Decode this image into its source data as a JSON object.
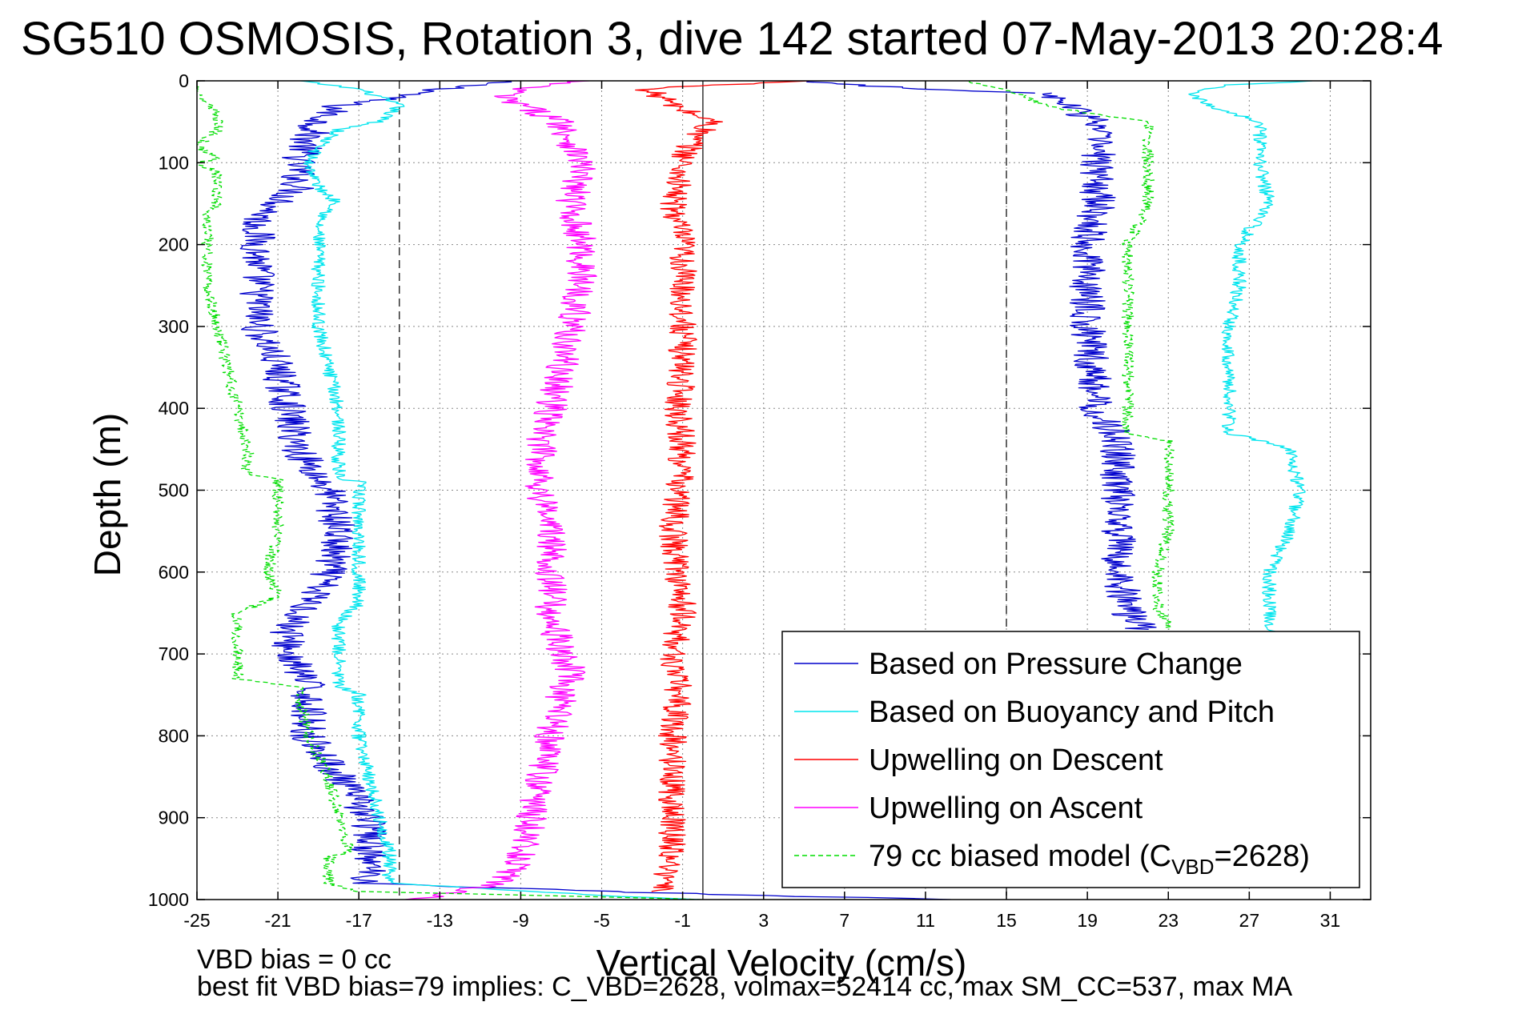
{
  "chart_data": {
    "type": "line",
    "title": "SG510 OSMOSIS, Rotation 3, dive 142 started 07-May-2013 20:28:4",
    "xlabel": "Vertical Velocity (cm/s)",
    "ylabel": "Depth (m)",
    "xlim": [
      -25,
      33
    ],
    "ylim": [
      0,
      1000
    ],
    "y_reversed": true,
    "grid": true,
    "x_ticks": [
      -25,
      -21,
      -17,
      -13,
      -9,
      -5,
      -1,
      3,
      7,
      11,
      15,
      19,
      23,
      27,
      31
    ],
    "y_ticks": [
      0,
      100,
      200,
      300,
      400,
      500,
      600,
      700,
      800,
      900,
      1000
    ],
    "vertical_reference_lines": [
      {
        "x": -15,
        "style": "dashed"
      },
      {
        "x": 0,
        "style": "solid"
      },
      {
        "x": 15,
        "style": "dashed"
      }
    ],
    "legend_position": "lower-right",
    "noise_amplitude": {
      "Based on Pressure Change": 0.9,
      "Based on Buoyancy and Pitch": 0.35,
      "Upwelling on Descent": 0.7,
      "Upwelling on Ascent": 0.8,
      "79 cc biased model": 0.3
    },
    "series": [
      {
        "name": "Based on Pressure Change",
        "color": "#0000cc",
        "dash": "solid",
        "segments": [
          {
            "depth": [
              0,
              15,
              30,
              50,
              70,
              100,
              130,
              150,
              170,
              200,
              250,
              300,
              350,
              400,
              450,
              485,
              500,
              550,
              600,
              640,
              670,
              700,
              740,
              760,
              800,
              850,
              900,
              950,
              980,
              990,
              995,
              1000
            ],
            "value": [
              -10,
              -14,
              -18,
              -19,
              -19.5,
              -20,
              -20,
              -21,
              -22,
              -22,
              -22,
              -22,
              -21,
              -20.5,
              -20,
              -19,
              -18.5,
              -18,
              -18.5,
              -19.5,
              -20.5,
              -20.5,
              -19.5,
              -19.5,
              -19.5,
              -18,
              -16.5,
              -16.5,
              -16.5,
              -5,
              3,
              12
            ]
          },
          {
            "depth": [
              0,
              5,
              10,
              15
            ],
            "value": [
              5,
              8,
              10,
              17
            ]
          },
          {
            "depth": [
              15,
              30,
              50,
              100,
              150,
              200,
              250,
              300,
              350,
              400,
              440,
              500,
              550,
              600,
              650,
              665,
              670
            ],
            "value": [
              17,
              18,
              19.5,
              19.5,
              19.5,
              19,
              19,
              19,
              19.2,
              19.5,
              20.5,
              20.5,
              20.5,
              20.5,
              21,
              21.5,
              21.5
            ]
          }
        ]
      },
      {
        "name": "Based on Buoyancy and Pitch",
        "color": "#00e5ee",
        "dash": "solid",
        "segments": [
          {
            "depth": [
              0,
              10,
              30,
              50,
              60,
              80,
              100,
              130,
              150,
              170,
              200,
              250,
              300,
              350,
              400,
              450,
              485,
              490,
              500,
              550,
              600,
              640,
              660,
              700,
              740,
              750,
              800,
              850,
              900,
              940,
              980,
              995,
              1000
            ],
            "value": [
              -20,
              -17,
              -15,
              -16,
              -18,
              -19,
              -19.5,
              -19,
              -18,
              -19,
              -19,
              -19,
              -19,
              -18.5,
              -18,
              -18,
              -18,
              -17,
              -17,
              -17,
              -17,
              -17,
              -18,
              -18,
              -18,
              -17,
              -17,
              -16.5,
              -16,
              -15.5,
              -15.5,
              -5,
              0
            ]
          },
          {
            "depth": [
              0,
              5,
              15,
              30,
              50,
              100,
              150,
              200,
              250,
              300,
              350,
              400,
              430,
              450,
              500,
              550,
              600,
              650,
              670,
              680
            ],
            "value": [
              30,
              26,
              24,
              25,
              27.5,
              27.5,
              28,
              26.5,
              26.5,
              26,
              26,
              26,
              26,
              29,
              29.5,
              29,
              28,
              28,
              28,
              29
            ]
          }
        ]
      },
      {
        "name": "Upwelling on Descent",
        "color": "#ff0000",
        "dash": "solid",
        "segments": [
          {
            "depth": [
              0,
              10,
              20,
              30,
              50,
              70,
              100,
              150,
              200,
              250,
              300,
              350,
              400,
              450,
              500,
              550,
              600,
              650,
              700,
              750,
              800,
              850,
              900,
              950,
              980,
              990
            ],
            "value": [
              5,
              -3,
              -2,
              -1.5,
              0.5,
              -0.5,
              -1,
              -1.5,
              -1,
              -1,
              -1,
              -1,
              -1.2,
              -1,
              -1.2,
              -1.5,
              -1.2,
              -1,
              -1.5,
              -1.2,
              -1.5,
              -1.5,
              -1.5,
              -1.5,
              -2,
              -2
            ]
          }
        ]
      },
      {
        "name": "Upwelling on Ascent",
        "color": "#ff00ff",
        "dash": "solid",
        "segments": [
          {
            "depth": [
              0,
              5,
              10,
              20,
              30,
              50,
              100,
              150,
              200,
              250,
              300,
              350,
              400,
              430,
              450,
              500,
              550,
              600,
              650,
              700,
              720,
              750,
              800,
              850,
              900,
              950,
              980,
              995,
              1000
            ],
            "value": [
              -6,
              -8,
              -9,
              -10,
              -9,
              -7,
              -6,
              -6.5,
              -6,
              -6,
              -6.5,
              -7,
              -7.5,
              -8,
              -8,
              -8,
              -7.5,
              -7.5,
              -7.5,
              -7,
              -6.5,
              -7,
              -7.5,
              -8,
              -8.5,
              -9,
              -10,
              -13,
              -15
            ]
          }
        ]
      },
      {
        "name": "79 cc biased model (C_VBD=2628)",
        "color": "#00dd00",
        "dash": "dashed",
        "segments": [
          {
            "depth": [
              0,
              20,
              40,
              60,
              80,
              95,
              100,
              110,
              120,
              140,
              150,
              160,
              200,
              250,
              300,
              350,
              400,
              450,
              480,
              485,
              490,
              500,
              550,
              600,
              630,
              640,
              650,
              700,
              730,
              740,
              750,
              800,
              850,
              900,
              940,
              950,
              980,
              990,
              995,
              1000
            ],
            "value": [
              -25,
              -25,
              -24,
              -24,
              -25,
              -24,
              -25,
              -24,
              -24,
              -24,
              -24,
              -24.5,
              -24.5,
              -24.5,
              -24,
              -23.5,
              -23,
              -22.5,
              -22.5,
              -21,
              -21,
              -21,
              -21,
              -21.5,
              -21,
              -22,
              -23,
              -23,
              -23,
              -20,
              -20,
              -19.5,
              -18.5,
              -18,
              -17.5,
              -18.5,
              -18.5,
              -17,
              -8,
              0
            ]
          },
          {
            "depth": [
              0,
              10,
              30,
              40,
              50,
              100,
              150,
              200,
              250,
              300,
              350,
              400,
              430,
              440,
              450,
              500,
              550,
              600,
              650,
              660,
              670
            ],
            "value": [
              13,
              15,
              17,
              19,
              22,
              22,
              22,
              21,
              21,
              21,
              21,
              21,
              21,
              23,
              23,
              23,
              23,
              22.5,
              22.5,
              23,
              23
            ]
          }
        ]
      }
    ],
    "legend": [
      {
        "label": "Based on Pressure Change",
        "color": "#0000cc",
        "dash": "solid"
      },
      {
        "label": "Based on Buoyancy and Pitch",
        "color": "#00e5ee",
        "dash": "solid"
      },
      {
        "label": "Upwelling on Descent",
        "color": "#ff0000",
        "dash": "solid"
      },
      {
        "label": "Upwelling on Ascent",
        "color": "#ff00ff",
        "dash": "solid"
      },
      {
        "label": "79 cc biased model (C",
        "sub": "VBD",
        "suffix": "=2628)",
        "color": "#00dd00",
        "dash": "dashed"
      }
    ],
    "notes": [
      "VBD bias = 0 cc",
      "best fit VBD bias=79 implies: C_VBD=2628, volmax=52414 cc, max SM_CC=537, max MA"
    ]
  }
}
